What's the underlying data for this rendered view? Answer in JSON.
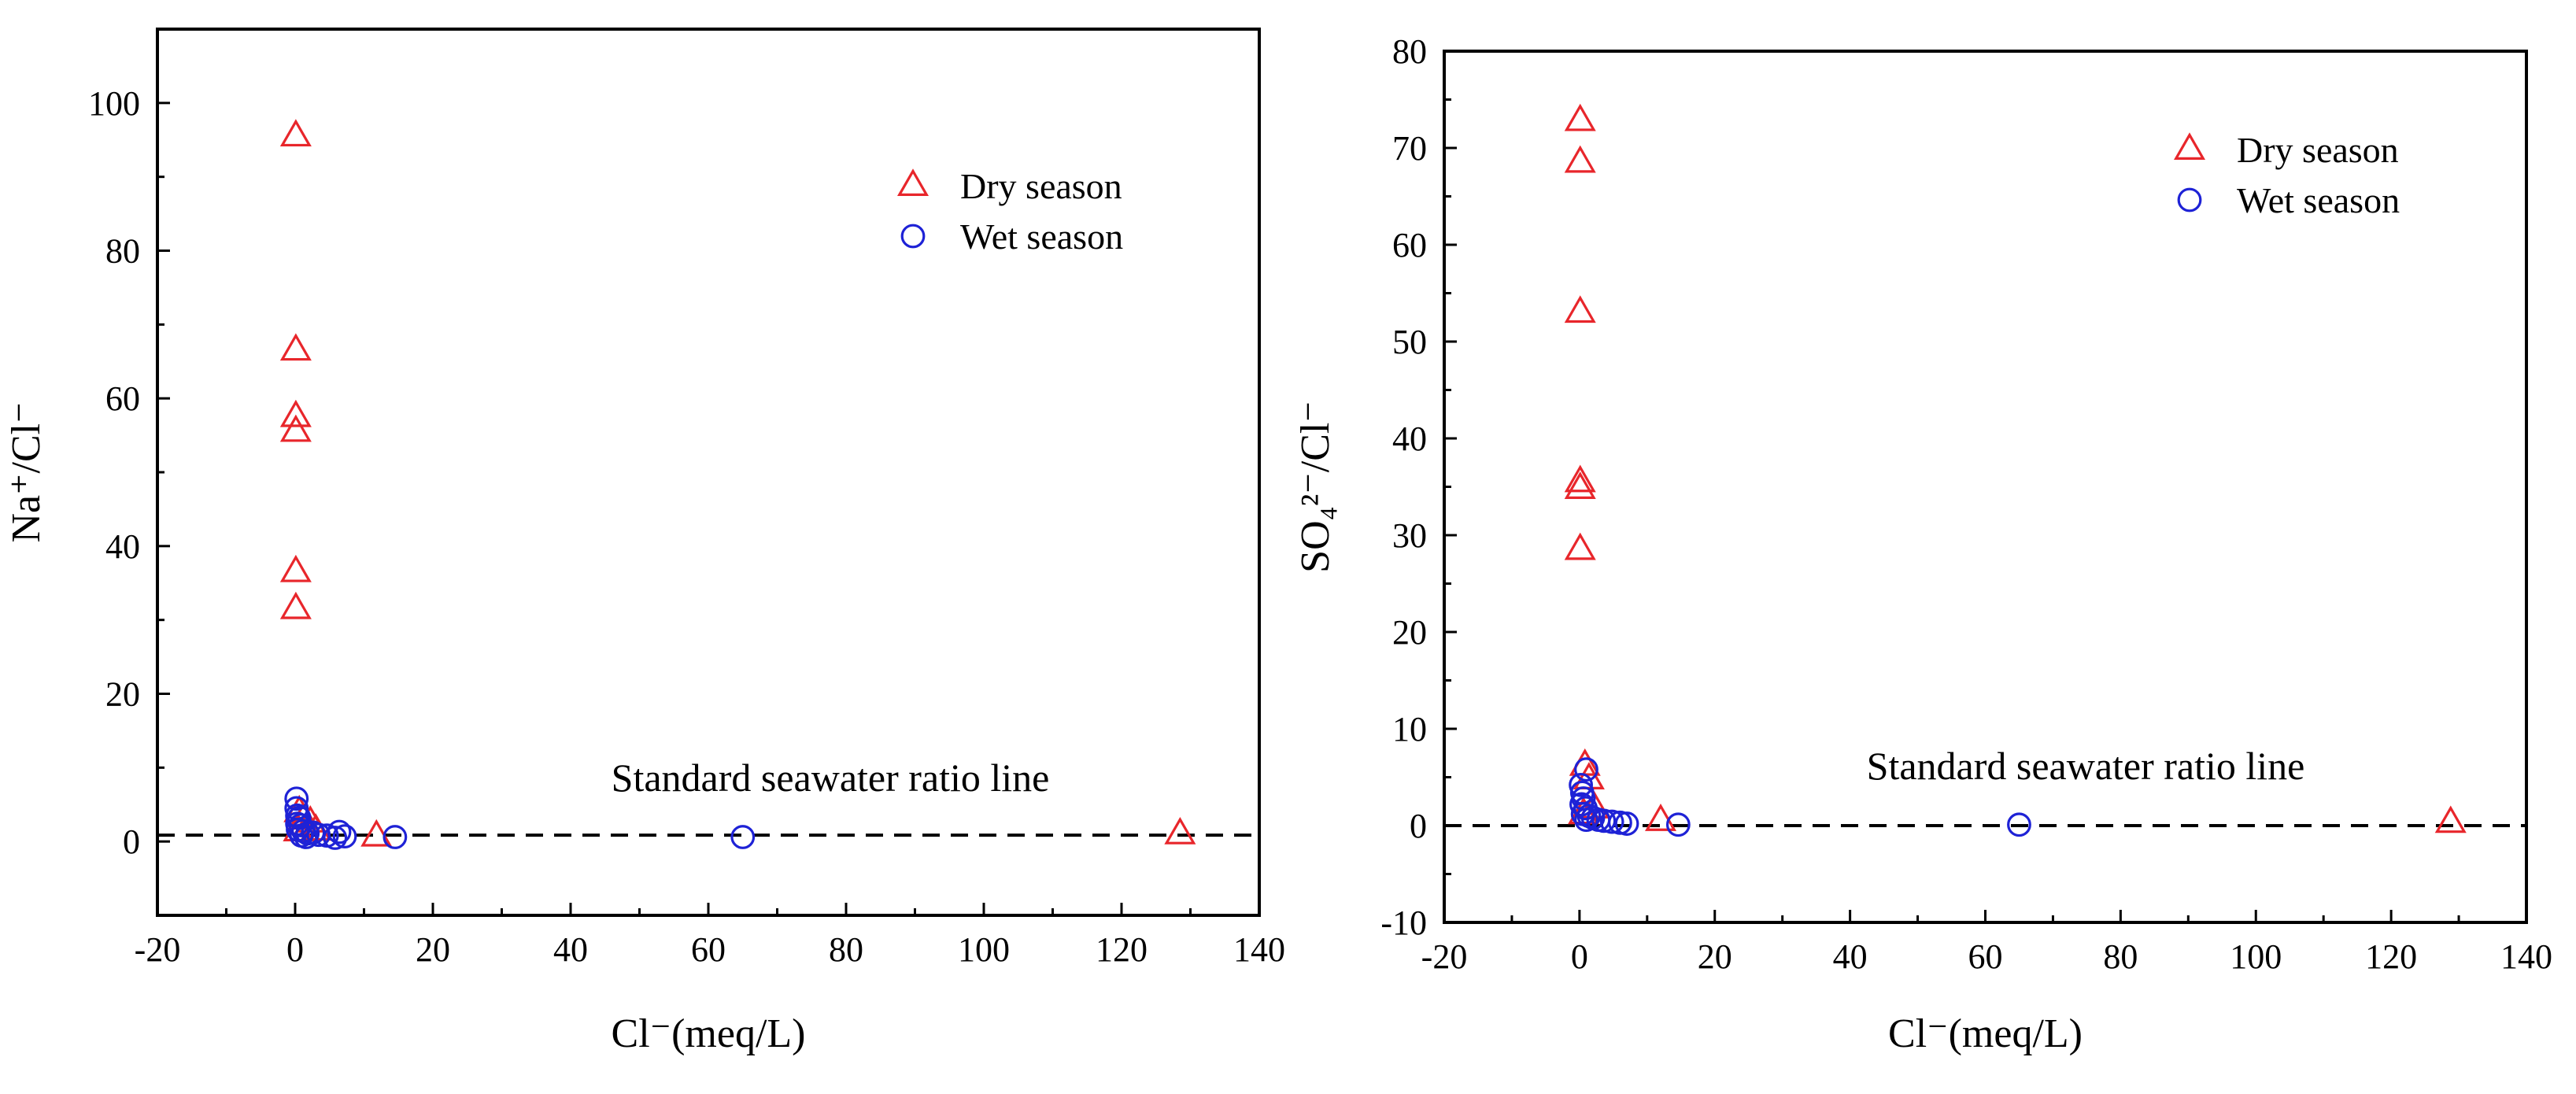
{
  "chart_data": [
    {
      "type": "scatter",
      "xlabel": "Cl⁻(meq/L)",
      "ylabel": "Na⁺/Cl⁻",
      "xlim": [
        -20,
        140
      ],
      "ylim": [
        -10,
        110
      ],
      "xticks": [
        -20,
        0,
        20,
        40,
        60,
        80,
        100,
        120,
        140
      ],
      "yticks": [
        0,
        20,
        40,
        60,
        80,
        100
      ],
      "legend_position": "top-right",
      "series": [
        {
          "name": "Dry season",
          "marker": "triangle",
          "color": "#e8262b",
          "points": [
            [
              0.1,
              95.5
            ],
            [
              0.1,
              66.5
            ],
            [
              0.1,
              57.5
            ],
            [
              0.1,
              55.5
            ],
            [
              0.1,
              36.5
            ],
            [
              0.1,
              31.5
            ],
            [
              0.6,
              4.0
            ],
            [
              1.2,
              3.0
            ],
            [
              2.2,
              2.6
            ],
            [
              3.0,
              1.5
            ],
            [
              0.5,
              1.4
            ],
            [
              11.8,
              0.7
            ],
            [
              128.5,
              1.0
            ]
          ]
        },
        {
          "name": "Wet season",
          "marker": "circle",
          "color": "#1e22d6",
          "points": [
            [
              0.2,
              5.8
            ],
            [
              0.2,
              4.5
            ],
            [
              0.3,
              3.5
            ],
            [
              0.6,
              3.2
            ],
            [
              0.3,
              2.4
            ],
            [
              0.8,
              2.2
            ],
            [
              0.4,
              1.6
            ],
            [
              1.2,
              1.4
            ],
            [
              1.8,
              1.1
            ],
            [
              0.9,
              0.8
            ],
            [
              1.6,
              0.6
            ],
            [
              2.6,
              1.2
            ],
            [
              3.4,
              0.9
            ],
            [
              4.6,
              0.8
            ],
            [
              5.8,
              0.5
            ],
            [
              6.4,
              1.3
            ],
            [
              7.2,
              0.7
            ],
            [
              14.5,
              0.6
            ],
            [
              65.0,
              0.6
            ]
          ]
        }
      ],
      "reference_line": {
        "y": 0.86,
        "style": "dashed",
        "label": "Standard seawater ratio line"
      }
    },
    {
      "type": "scatter",
      "xlabel": "Cl⁻(meq/L)",
      "ylabel": "SO₄²⁻/Cl⁻",
      "xlim": [
        -20,
        140
      ],
      "ylim": [
        -10,
        80
      ],
      "xticks": [
        -20,
        0,
        20,
        40,
        60,
        80,
        100,
        120,
        140
      ],
      "yticks": [
        -10,
        0,
        10,
        20,
        30,
        40,
        50,
        60,
        70,
        80
      ],
      "legend_position": "top-right",
      "series": [
        {
          "name": "Dry season",
          "marker": "triangle",
          "color": "#e8262b",
          "points": [
            [
              0.1,
              72.8
            ],
            [
              0.1,
              68.5
            ],
            [
              0.1,
              53.0
            ],
            [
              0.1,
              35.5
            ],
            [
              0.1,
              34.8
            ],
            [
              0.1,
              28.5
            ],
            [
              0.8,
              6.2
            ],
            [
              1.4,
              4.8
            ],
            [
              2.2,
              1.8
            ],
            [
              0.6,
              1.2
            ],
            [
              12.0,
              0.5
            ],
            [
              128.8,
              0.3
            ]
          ]
        },
        {
          "name": "Wet season",
          "marker": "circle",
          "color": "#1e22d6",
          "points": [
            [
              1.0,
              5.8
            ],
            [
              0.2,
              4.2
            ],
            [
              0.4,
              3.4
            ],
            [
              0.6,
              2.8
            ],
            [
              0.3,
              2.2
            ],
            [
              0.9,
              1.8
            ],
            [
              0.5,
              1.2
            ],
            [
              1.4,
              1.0
            ],
            [
              2.0,
              0.8
            ],
            [
              1.0,
              0.6
            ],
            [
              2.8,
              0.6
            ],
            [
              3.6,
              0.5
            ],
            [
              4.8,
              0.4
            ],
            [
              6.0,
              0.3
            ],
            [
              7.0,
              0.2
            ],
            [
              14.6,
              0.1
            ],
            [
              65.0,
              0.1
            ]
          ]
        }
      ],
      "reference_line": {
        "y": 0.0,
        "style": "dashed",
        "label": "Standard seawater ratio line"
      }
    }
  ]
}
